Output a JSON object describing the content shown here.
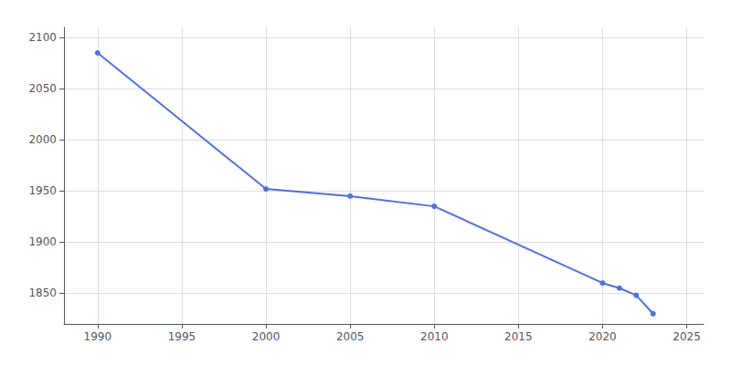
{
  "chart_data": {
    "type": "line",
    "x": [
      1990,
      2000,
      2005,
      2010,
      2020,
      2021,
      2022,
      2023
    ],
    "values": [
      2085,
      1952,
      1945,
      1935,
      1860,
      1855,
      1848,
      1830
    ],
    "xlim": [
      1988,
      2026
    ],
    "ylim": [
      1820,
      2110
    ],
    "xticks": [
      1990,
      1995,
      2000,
      2005,
      2010,
      2015,
      2020,
      2025
    ],
    "yticks": [
      1850,
      1900,
      1950,
      2000,
      2050,
      2100
    ],
    "grid": true,
    "marker": "circle"
  }
}
